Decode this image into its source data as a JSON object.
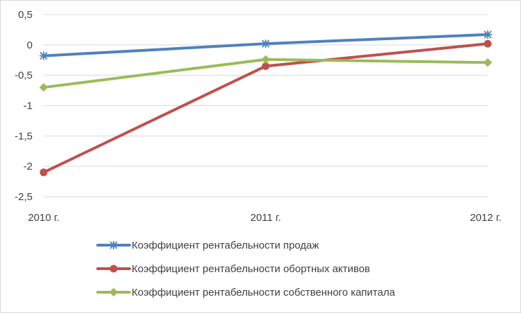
{
  "chart_data": {
    "type": "line",
    "categories": [
      "2010 г.",
      "2011 г.",
      "2012 г."
    ],
    "ylim": [
      -2.5,
      0.5
    ],
    "yticks": [
      "0,5",
      "0",
      "-0,5",
      "-1",
      "-1,5",
      "-2",
      "-2,5"
    ],
    "ytick_values": [
      0.5,
      0,
      -0.5,
      -1,
      -1.5,
      -2,
      -2.5
    ],
    "grid": true,
    "legend_position": "bottom",
    "series": [
      {
        "name": "Коэффициент рентабельности продаж",
        "values": [
          -0.18,
          0.02,
          0.17
        ],
        "color": "#4f81bd",
        "marker": "star"
      },
      {
        "name": "Коэффициент рентабельности обортных активов",
        "values": [
          -2.1,
          -0.35,
          0.02
        ],
        "color": "#c0504d",
        "marker": "circle"
      },
      {
        "name": "Коэффициент рентабельности собственного капитала",
        "values": [
          -0.7,
          -0.24,
          -0.29
        ],
        "color": "#9bbb59",
        "marker": "diamond"
      }
    ]
  }
}
